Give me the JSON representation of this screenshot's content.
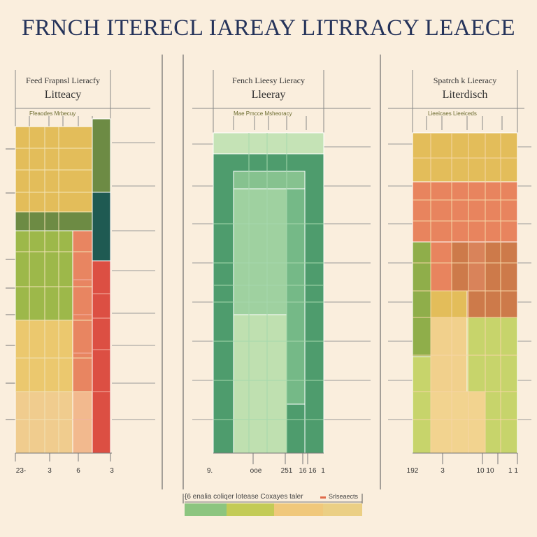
{
  "title": "FRNCH ITERECL IAREAY LITRRACY LEAECE",
  "chart_data": [
    {
      "type": "heatmap",
      "title_line1": "Feed Frapnsl Lieracfy",
      "title_line2": "Litteacy",
      "subheader": "Ffeaodes Mrbecuy",
      "x_tick_labels": [
        "23-",
        "3",
        "6",
        "3"
      ],
      "colors": {
        "yellow": "#e3bd5a",
        "green": "#9db84a",
        "teal": "#1f5a52",
        "olive": "#6d8b44",
        "orange": "#e88561",
        "red": "#dc4f43",
        "lightyellow": "#ebc86e",
        "peach": "#f2b98e"
      }
    },
    {
      "type": "heatmap",
      "title_line1": "Fench Lieesy Lieracy",
      "title_line2": "Lleeray",
      "subheader": "Mae  Pmcce  Msheoracy",
      "x_tick_labels": [
        "9.",
        "ooe",
        "251",
        "16 16",
        "1"
      ],
      "colors": {
        "darkgreen": "#4e9c6d",
        "midgreen": "#75b987",
        "lightgreen": "#9fd1a0",
        "palegreen": "#c5e3b6"
      }
    },
    {
      "type": "heatmap",
      "title_line1": "Spatrch k Lieeracy",
      "title_line2": "Literdisch",
      "subheader": "Lieeicaes  Lieeiceds",
      "x_tick_labels": [
        "192",
        "3",
        "10 10",
        "1 1"
      ],
      "colors": {
        "yellow": "#e3bd5a",
        "orange": "#e8845e",
        "brown": "#cd7a4a",
        "green": "#8fae4a",
        "lightgreen": "#c7d46b",
        "lightyellow": "#f1d08c"
      }
    }
  ],
  "legend": {
    "label": "{6 enalia coliqer lotease Coxayes taler",
    "right_label": "Srlseaects",
    "swatch_colors": [
      "#8cc57f",
      "#c3cb56",
      "#f0c87b",
      "#ebcf84"
    ]
  }
}
